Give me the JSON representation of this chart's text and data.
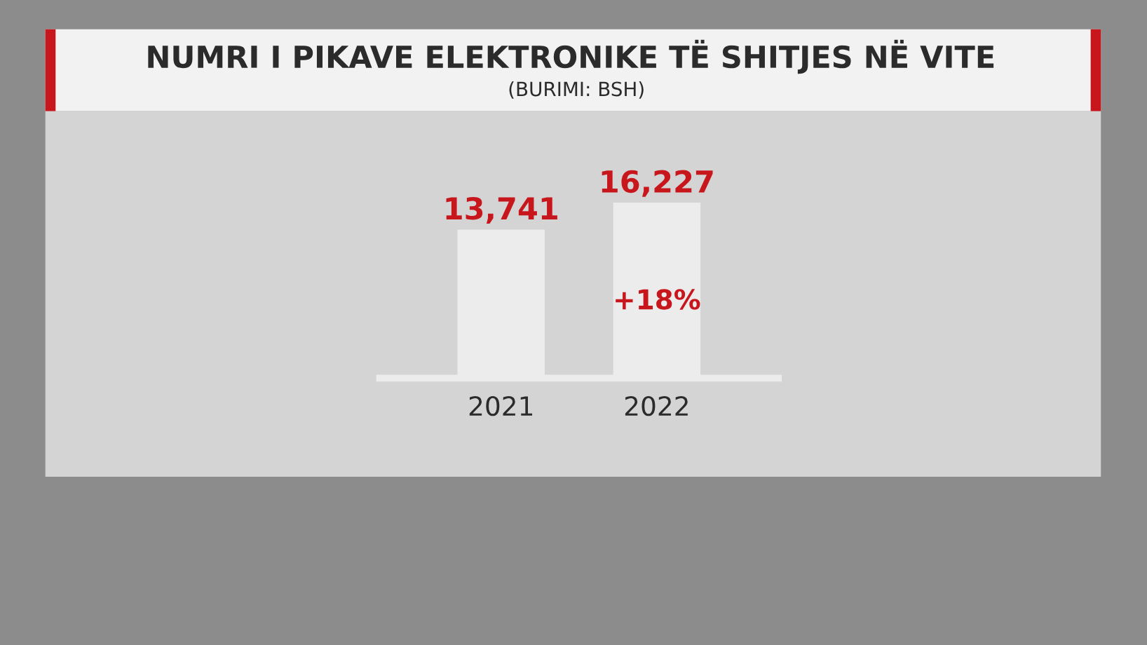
{
  "chart_data": {
    "type": "bar",
    "title": "NUMRI I PIKAVE ELEKTRONIKE TË SHITJES NË VITE",
    "subtitle": "(BURIMI: BSH)",
    "categories": [
      "2021",
      "2022"
    ],
    "values": [
      13741,
      16227
    ],
    "value_labels": [
      "13,741",
      "16,227"
    ],
    "color": "#ececec",
    "annotations": [
      "+18%"
    ],
    "grid": false,
    "legend": false
  }
}
